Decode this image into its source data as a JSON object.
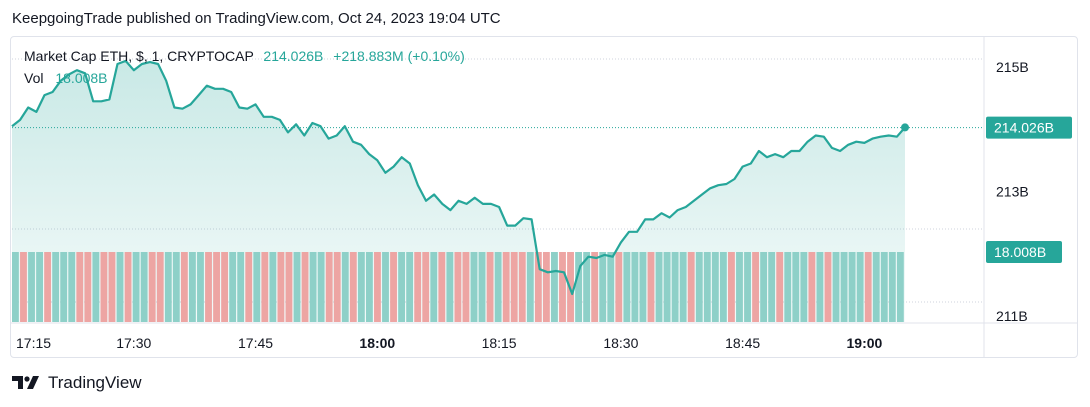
{
  "header": {
    "published": "KeepgoingTrade published on TradingView.com, Oct 24, 2023 19:04 UTC"
  },
  "legend": {
    "symbol": "Market Cap ETH, $, 1, CRYPTOCAP",
    "last": "214.026B",
    "change": "+218.883M (+0.10%)",
    "vol_label": "Vol",
    "vol_value": "18.008B"
  },
  "footer": {
    "brand": "TradingView"
  },
  "colors": {
    "line": "#26a69a",
    "area": "#26a69a",
    "vol_up": "#8ed0c8",
    "vol_down": "#eda5a3",
    "badge": "#26a69a",
    "grid": "#cfd3dc"
  },
  "chart_data": {
    "type": "area",
    "x_tick_labels": [
      "17:15",
      "17:30",
      "17:45",
      "18:00",
      "18:15",
      "18:30",
      "18:45",
      "19:00"
    ],
    "x_tick_minutes": [
      0,
      15,
      30,
      45,
      60,
      75,
      90,
      105
    ],
    "bold_ticks": [
      "18:00",
      "19:00"
    ],
    "y_tick_labels": [
      "215B",
      "213B",
      "211B"
    ],
    "y_tick_values": [
      215,
      213,
      211
    ],
    "ylim": [
      210.9,
      215.5
    ],
    "unit": "B",
    "last_price_label": "214.026B",
    "last_price": 214.026,
    "volume_label": "18.008B",
    "series": [
      {
        "values": [
          214.05,
          214.15,
          214.35,
          214.28,
          214.55,
          214.6,
          214.78,
          214.88,
          214.95,
          214.9,
          214.45,
          214.45,
          214.48,
          215.05,
          215.1,
          214.95,
          215.05,
          215.08,
          215.05,
          214.78,
          214.35,
          214.33,
          214.4,
          214.55,
          214.7,
          214.65,
          214.65,
          214.6,
          214.35,
          214.33,
          214.4,
          214.2,
          214.2,
          214.15,
          213.95,
          214.08,
          213.9,
          214.1,
          214.05,
          213.85,
          213.9,
          214.05,
          213.8,
          213.75,
          213.6,
          213.5,
          213.3,
          213.4,
          213.55,
          213.45,
          213.1,
          212.85,
          212.95,
          212.8,
          212.7,
          212.85,
          212.8,
          212.9,
          212.8,
          212.8,
          212.75,
          212.45,
          212.45,
          212.57,
          212.55,
          211.75,
          211.7,
          211.72,
          211.7,
          211.35,
          211.8,
          211.95,
          211.93,
          211.98,
          211.95,
          212.18,
          212.35,
          212.35,
          212.55,
          212.55,
          212.65,
          212.58,
          212.7,
          212.75,
          212.85,
          212.95,
          213.05,
          213.1,
          213.12,
          213.2,
          213.4,
          213.45,
          213.65,
          213.55,
          213.6,
          213.55,
          213.65,
          213.65,
          213.8,
          213.9,
          213.88,
          213.7,
          213.65,
          213.75,
          213.8,
          213.78,
          213.85,
          213.88,
          213.9,
          213.88,
          214.03
        ]
      }
    ],
    "volume": {
      "ylim": [
        0,
        18.008
      ],
      "up": [
        1,
        0,
        1,
        1,
        0,
        1,
        1,
        1,
        0,
        0,
        1,
        0,
        0,
        1,
        0,
        1,
        1,
        0,
        0,
        1,
        1,
        0,
        1,
        1,
        0,
        0,
        0,
        1,
        1,
        0,
        1,
        0,
        1,
        0,
        0,
        1,
        0,
        1,
        1,
        0,
        0,
        1,
        0,
        1,
        1,
        0,
        1,
        0,
        1,
        1,
        0,
        0,
        1,
        0,
        1,
        0,
        0,
        1,
        1,
        0,
        1,
        0,
        0,
        0,
        1,
        0,
        0,
        1,
        0,
        0,
        1,
        1,
        0,
        1,
        1,
        0,
        1,
        1,
        1,
        0,
        1,
        1,
        1,
        1,
        0,
        1,
        1,
        1,
        1,
        0,
        1,
        1,
        0,
        1,
        1,
        0,
        1,
        1,
        1,
        0,
        1,
        0,
        1,
        1,
        1,
        1,
        0,
        1,
        1,
        1,
        1
      ]
    }
  }
}
